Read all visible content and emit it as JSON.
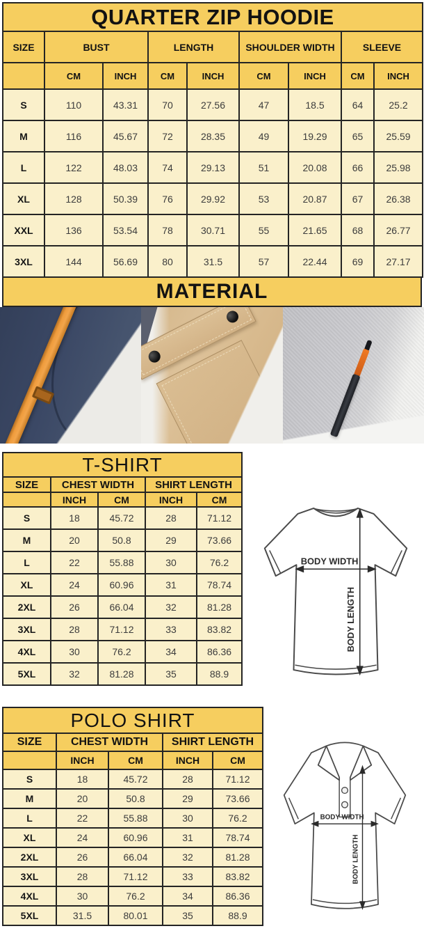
{
  "colors": {
    "header_yellow": "#f6ce5f",
    "cell_cream": "#faf0cb",
    "table_border": "#242424",
    "accent_orange": "#ef9c3d",
    "navy_fabric": "#3b4865",
    "khaki_fabric": "#d8ba8e",
    "gray_fabric": "#cbcbcf"
  },
  "hoodie_table": {
    "title": "QUARTER ZIP HOODIE",
    "size_label": "SIZE",
    "groups": [
      "BUST",
      "LENGTH",
      "SHOULDER WIDTH",
      "SLEEVE"
    ],
    "units": [
      "CM",
      "INCH",
      "CM",
      "INCH",
      "CM",
      "INCH",
      "CM",
      "INCH"
    ],
    "rows": [
      {
        "size": "S",
        "values": [
          "110",
          "43.31",
          "70",
          "27.56",
          "47",
          "18.5",
          "64",
          "25.2"
        ]
      },
      {
        "size": "M",
        "values": [
          "116",
          "45.67",
          "72",
          "28.35",
          "49",
          "19.29",
          "65",
          "25.59"
        ]
      },
      {
        "size": "L",
        "values": [
          "122",
          "48.03",
          "74",
          "29.13",
          "51",
          "20.08",
          "66",
          "25.98"
        ]
      },
      {
        "size": "XL",
        "values": [
          "128",
          "50.39",
          "76",
          "29.92",
          "53",
          "20.87",
          "67",
          "26.38"
        ]
      },
      {
        "size": "XXL",
        "values": [
          "136",
          "53.54",
          "78",
          "30.71",
          "55",
          "21.65",
          "68",
          "26.77"
        ]
      },
      {
        "size": "3XL",
        "values": [
          "144",
          "56.69",
          "80",
          "31.5",
          "57",
          "22.44",
          "69",
          "27.17"
        ]
      }
    ]
  },
  "material": {
    "title": "MATERIAL",
    "photos": [
      "navy-fleece-with-orange-drawstring",
      "khaki-flap-pocket-with-snaps",
      "gray-fleece-with-zipper"
    ]
  },
  "tshirt_table": {
    "title": "T-SHIRT",
    "size_label": "SIZE",
    "groups": [
      "CHEST WIDTH",
      "SHIRT LENGTH"
    ],
    "units": [
      "INCH",
      "CM",
      "INCH",
      "CM"
    ],
    "rows": [
      {
        "size": "S",
        "values": [
          "18",
          "45.72",
          "28",
          "71.12"
        ]
      },
      {
        "size": "M",
        "values": [
          "20",
          "50.8",
          "29",
          "73.66"
        ]
      },
      {
        "size": "L",
        "values": [
          "22",
          "55.88",
          "30",
          "76.2"
        ]
      },
      {
        "size": "XL",
        "values": [
          "24",
          "60.96",
          "31",
          "78.74"
        ]
      },
      {
        "size": "2XL",
        "values": [
          "26",
          "66.04",
          "32",
          "81.28"
        ]
      },
      {
        "size": "3XL",
        "values": [
          "28",
          "71.12",
          "33",
          "83.82"
        ]
      },
      {
        "size": "4XL",
        "values": [
          "30",
          "76.2",
          "34",
          "86.36"
        ]
      },
      {
        "size": "5XL",
        "values": [
          "32",
          "81.28",
          "35",
          "88.9"
        ]
      }
    ],
    "diagram": {
      "width_label": "BODY WIDTH",
      "length_label": "BODY LENGTH"
    }
  },
  "polo_table": {
    "title": "POLO SHIRT",
    "size_label": "SIZE",
    "groups": [
      "CHEST WIDTH",
      "SHIRT LENGTH"
    ],
    "units": [
      "INCH",
      "CM",
      "INCH",
      "CM"
    ],
    "rows": [
      {
        "size": "S",
        "values": [
          "18",
          "45.72",
          "28",
          "71.12"
        ]
      },
      {
        "size": "M",
        "values": [
          "20",
          "50.8",
          "29",
          "73.66"
        ]
      },
      {
        "size": "L",
        "values": [
          "22",
          "55.88",
          "30",
          "76.2"
        ]
      },
      {
        "size": "XL",
        "values": [
          "24",
          "60.96",
          "31",
          "78.74"
        ]
      },
      {
        "size": "2XL",
        "values": [
          "26",
          "66.04",
          "32",
          "81.28"
        ]
      },
      {
        "size": "3XL",
        "values": [
          "28",
          "71.12",
          "33",
          "83.82"
        ]
      },
      {
        "size": "4XL",
        "values": [
          "30",
          "76.2",
          "34",
          "86.36"
        ]
      },
      {
        "size": "5XL",
        "values": [
          "31.5",
          "80.01",
          "35",
          "88.9"
        ]
      }
    ],
    "diagram": {
      "width_label": "BODY WIDTH",
      "length_label": "BODY LENGTH"
    }
  }
}
